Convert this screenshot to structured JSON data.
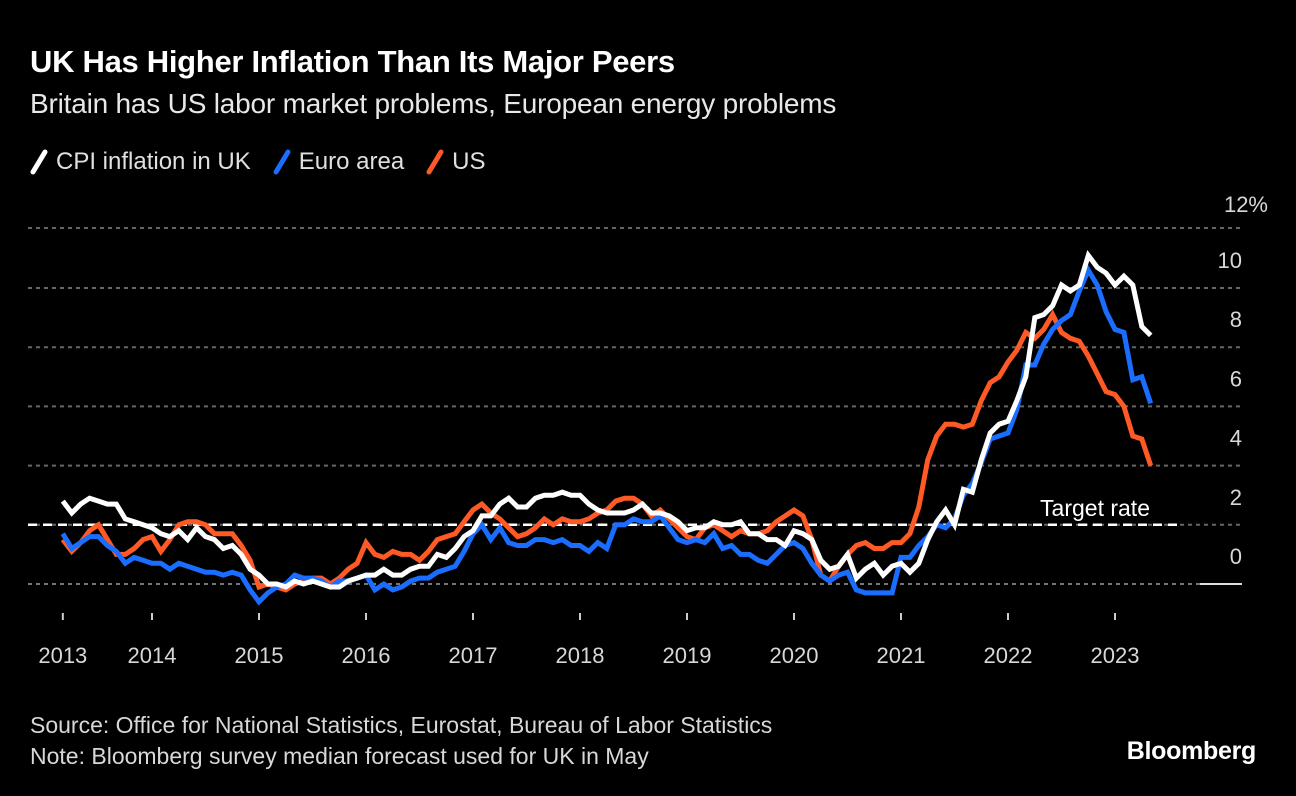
{
  "header": {
    "title": "UK Has Higher Inflation Than Its Major Peers",
    "subtitle": "Britain has US labor market problems, European energy problems"
  },
  "legend": [
    {
      "label": "CPI inflation in UK",
      "color": "#ffffff"
    },
    {
      "label": "Euro area",
      "color": "#1a6dff"
    },
    {
      "label": "US",
      "color": "#ff5a26"
    }
  ],
  "footer": {
    "source": "Source: Office for National Statistics, Eurostat, Bureau of Labor Statistics",
    "note": "Note: Bloomberg survey median forecast used for UK in May",
    "logo": "Bloomberg"
  },
  "chart_data": {
    "type": "line",
    "title": "UK Has Higher Inflation Than Its Major Peers",
    "subtitle": "Britain has US labor market problems, European energy problems",
    "xlabel": "",
    "ylabel": "",
    "x_start": "2013-03",
    "x_end": "2023-05",
    "frequency": "monthly",
    "x_ticks": [
      "2013",
      "2014",
      "2015",
      "2016",
      "2017",
      "2018",
      "2019",
      "2020",
      "2021",
      "2022",
      "2023"
    ],
    "y_ticks": [
      "0",
      "2",
      "4",
      "6",
      "8",
      "10",
      "12%"
    ],
    "y_tick_values": [
      0,
      2,
      4,
      6,
      8,
      10,
      12
    ],
    "ylim": [
      -1,
      12
    ],
    "grid": true,
    "legend_position": "top-left",
    "annotations": [
      {
        "text": "Target rate",
        "y": 2
      }
    ],
    "series": [
      {
        "name": "CPI inflation in UK",
        "color": "#ffffff",
        "values": [
          2.8,
          2.4,
          2.7,
          2.9,
          2.8,
          2.7,
          2.7,
          2.2,
          2.1,
          2.0,
          1.9,
          1.7,
          1.6,
          1.8,
          1.5,
          1.9,
          1.6,
          1.5,
          1.2,
          1.3,
          1.0,
          0.5,
          0.3,
          0.0,
          0.0,
          -0.1,
          0.1,
          0.0,
          0.1,
          0.0,
          -0.1,
          -0.1,
          0.1,
          0.2,
          0.3,
          0.3,
          0.5,
          0.3,
          0.3,
          0.5,
          0.6,
          0.6,
          1.0,
          0.9,
          1.2,
          1.6,
          1.8,
          2.3,
          2.3,
          2.7,
          2.9,
          2.6,
          2.6,
          2.9,
          3.0,
          3.0,
          3.1,
          3.0,
          3.0,
          2.7,
          2.5,
          2.4,
          2.4,
          2.4,
          2.5,
          2.7,
          2.4,
          2.4,
          2.3,
          2.1,
          1.8,
          1.9,
          1.9,
          2.1,
          2.0,
          2.0,
          2.1,
          1.7,
          1.7,
          1.5,
          1.5,
          1.3,
          1.8,
          1.7,
          1.5,
          0.8,
          0.5,
          0.6,
          1.0,
          0.2,
          0.5,
          0.7,
          0.3,
          0.6,
          0.7,
          0.4,
          0.7,
          1.5,
          2.1,
          2.5,
          2.0,
          3.2,
          3.1,
          4.2,
          5.1,
          5.4,
          5.5,
          6.2,
          7.0,
          9.0,
          9.1,
          9.4,
          10.1,
          9.9,
          10.1,
          11.1,
          10.7,
          10.5,
          10.1,
          10.4,
          10.1,
          8.7,
          8.4
        ]
      },
      {
        "name": "Euro area",
        "color": "#1a6dff",
        "values": [
          1.7,
          1.2,
          1.4,
          1.6,
          1.6,
          1.3,
          1.1,
          0.7,
          0.9,
          0.8,
          0.7,
          0.7,
          0.5,
          0.7,
          0.6,
          0.5,
          0.4,
          0.4,
          0.3,
          0.4,
          0.3,
          -0.2,
          -0.6,
          -0.3,
          -0.1,
          0.0,
          0.3,
          0.2,
          0.2,
          0.1,
          -0.1,
          0.1,
          0.1,
          0.2,
          0.3,
          -0.2,
          0.0,
          -0.2,
          -0.1,
          0.1,
          0.2,
          0.2,
          0.4,
          0.5,
          0.6,
          1.1,
          1.7,
          2.0,
          1.5,
          1.9,
          1.4,
          1.3,
          1.3,
          1.5,
          1.5,
          1.4,
          1.5,
          1.3,
          1.3,
          1.1,
          1.4,
          1.2,
          2.0,
          2.0,
          2.2,
          2.1,
          2.1,
          2.3,
          1.9,
          1.5,
          1.4,
          1.5,
          1.4,
          1.7,
          1.2,
          1.3,
          1.0,
          1.0,
          0.8,
          0.7,
          1.0,
          1.3,
          1.4,
          1.2,
          0.7,
          0.3,
          0.1,
          0.3,
          0.4,
          -0.2,
          -0.3,
          -0.3,
          -0.3,
          -0.3,
          0.9,
          0.9,
          1.3,
          1.6,
          2.0,
          1.9,
          2.2,
          3.0,
          3.4,
          4.1,
          4.9,
          5.0,
          5.1,
          5.9,
          7.4,
          7.4,
          8.1,
          8.6,
          8.9,
          9.1,
          9.9,
          10.6,
          10.1,
          9.2,
          8.6,
          8.5,
          6.9,
          7.0,
          6.1
        ]
      },
      {
        "name": "US",
        "color": "#ff5a26",
        "values": [
          1.5,
          1.1,
          1.4,
          1.8,
          2.0,
          1.5,
          1.0,
          1.0,
          1.2,
          1.5,
          1.6,
          1.1,
          1.5,
          2.0,
          2.1,
          2.1,
          2.0,
          1.7,
          1.7,
          1.7,
          1.3,
          0.8,
          -0.1,
          0.0,
          -0.1,
          -0.2,
          0.0,
          0.1,
          0.2,
          0.2,
          0.0,
          0.2,
          0.5,
          0.7,
          1.4,
          1.0,
          0.9,
          1.1,
          1.0,
          1.0,
          0.8,
          1.1,
          1.5,
          1.6,
          1.7,
          2.1,
          2.5,
          2.7,
          2.4,
          2.2,
          1.9,
          1.6,
          1.7,
          1.9,
          2.2,
          2.0,
          2.2,
          2.1,
          2.1,
          2.2,
          2.4,
          2.5,
          2.8,
          2.9,
          2.9,
          2.7,
          2.3,
          2.5,
          2.2,
          1.9,
          1.6,
          1.5,
          1.9,
          2.0,
          1.8,
          1.6,
          1.8,
          1.7,
          1.7,
          1.8,
          2.1,
          2.3,
          2.5,
          2.3,
          1.5,
          0.3,
          0.1,
          0.6,
          1.0,
          1.3,
          1.4,
          1.2,
          1.2,
          1.4,
          1.4,
          1.7,
          2.6,
          4.2,
          5.0,
          5.4,
          5.4,
          5.3,
          5.4,
          6.2,
          6.8,
          7.0,
          7.5,
          7.9,
          8.5,
          8.3,
          8.6,
          9.1,
          8.5,
          8.3,
          8.2,
          7.7,
          7.1,
          6.5,
          6.4,
          6.0,
          5.0,
          4.9,
          4.0
        ]
      }
    ]
  }
}
